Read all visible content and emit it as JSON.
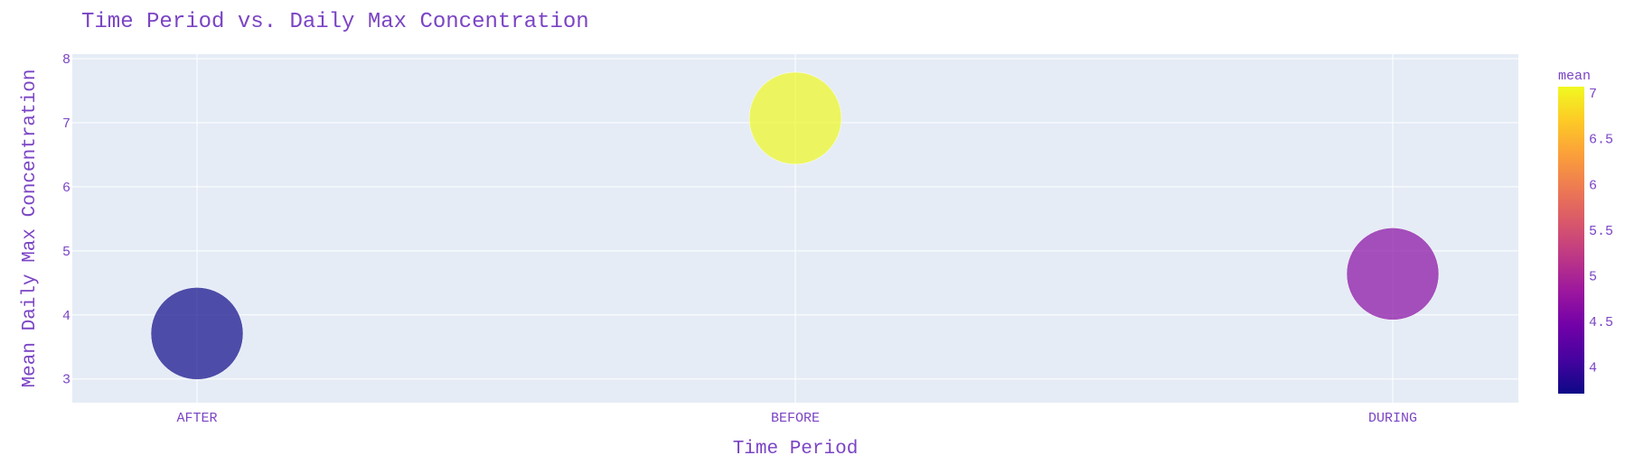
{
  "chart_data": {
    "type": "scatter",
    "title": "Time Period vs. Daily Max Concentration",
    "xlabel": "Time Period",
    "ylabel": "Mean Daily Max Concentration",
    "categories": [
      "AFTER",
      "BEFORE",
      "DURING"
    ],
    "values": [
      3.71,
      7.07,
      4.64
    ],
    "ylim": [
      2.63,
      8.07
    ],
    "yticks": [
      3,
      4,
      5,
      6,
      7,
      8
    ],
    "grid": true,
    "colorbar": {
      "title": "mean",
      "range": [
        3.71,
        7.07
      ],
      "ticks": [
        "7",
        "6.5",
        "6",
        "5.5",
        "5",
        "4.5",
        "4"
      ],
      "tick_values": [
        7,
        6.5,
        6,
        5.5,
        5,
        4.5,
        4
      ],
      "colorscale": [
        "#0d0887",
        "#46039f",
        "#7201a8",
        "#9c179e",
        "#bd3786",
        "#d8576b",
        "#ed7953",
        "#fb9f3a",
        "#fdca26",
        "#f0f921"
      ]
    },
    "marker_opacity": 0.7,
    "plot_bg": "#e5ecf6",
    "text_color": "#7b44c4"
  }
}
